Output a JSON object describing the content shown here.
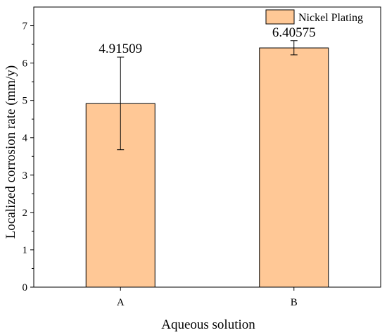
{
  "chart_data": {
    "type": "bar",
    "categories": [
      "A",
      "B"
    ],
    "series": [
      {
        "name": "Nickel Plating",
        "values": [
          4.91509,
          6.40575
        ],
        "error_low": [
          3.68,
          6.22
        ],
        "error_high": [
          6.16,
          6.6
        ],
        "data_labels": [
          "4.91509",
          "6.40575"
        ]
      }
    ],
    "title": "",
    "xlabel": "Aqueous solution",
    "ylabel": "Localized corrosion rate (mm/y)",
    "ylim": [
      0,
      7.5
    ],
    "yticks": [
      "0",
      "1",
      "2",
      "3",
      "4",
      "5",
      "6",
      "7"
    ],
    "grid": false,
    "legend_position": "top-right",
    "colors": {
      "bar_fill": "#ffc896",
      "bar_stroke": "#000000",
      "axis": "#000000"
    }
  }
}
